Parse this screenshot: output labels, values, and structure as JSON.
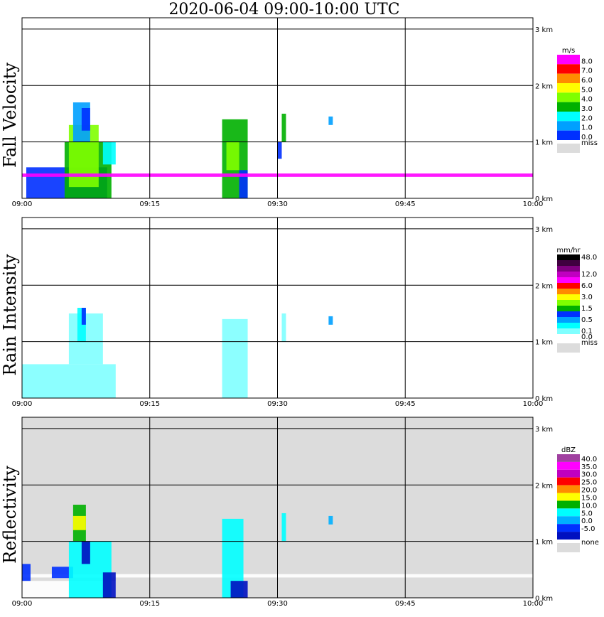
{
  "title": "2020-06-04   09:00-10:00 UTC",
  "chart_data": [
    {
      "type": "heatmap",
      "ylabel": "Fall Velocity",
      "x_ticks": [
        "09:00",
        "09:15",
        "09:30",
        "09:45",
        "10:00"
      ],
      "y_ticks": [
        "0 km",
        "1 km",
        "2 km",
        "3 km"
      ],
      "xlim": [
        "09:00",
        "10:00"
      ],
      "ylim_km": [
        0,
        3
      ],
      "background": "#ffffff",
      "colorbar": {
        "unit": "m/s",
        "bins": [
          {
            "label": "8.0",
            "color": "#ff00ff"
          },
          {
            "label": "7.0",
            "color": "#ff0000"
          },
          {
            "label": "6.0",
            "color": "#ff8c00"
          },
          {
            "label": "5.0",
            "color": "#ffff00"
          },
          {
            "label": "4.0",
            "color": "#7fff00"
          },
          {
            "label": "3.0",
            "color": "#00b000"
          },
          {
            "label": "2.0",
            "color": "#00ffff"
          },
          {
            "label": "1.0",
            "color": "#00a0ff"
          },
          {
            "label": "0.0",
            "color": "#0030ff"
          }
        ],
        "miss_label": "miss",
        "miss_color": "#dcdcdc"
      },
      "cells": [
        {
          "t": [
            0.5,
            10.0
          ],
          "z": [
            0.0,
            0.55
          ],
          "color": "#0030ff"
        },
        {
          "t": [
            5.0,
            10.5
          ],
          "z": [
            0.0,
            1.0
          ],
          "color": "#00b000"
        },
        {
          "t": [
            5.5,
            9.0
          ],
          "z": [
            0.2,
            1.3
          ],
          "color": "#7fff00"
        },
        {
          "t": [
            6.0,
            8.0
          ],
          "z": [
            1.0,
            1.7
          ],
          "color": "#00a0ff"
        },
        {
          "t": [
            7.0,
            8.0
          ],
          "z": [
            1.2,
            1.6
          ],
          "color": "#0030ff"
        },
        {
          "t": [
            9.5,
            11.0
          ],
          "z": [
            0.6,
            1.0
          ],
          "color": "#00ffff"
        },
        {
          "t": [
            23.5,
            26.5
          ],
          "z": [
            0.0,
            1.4
          ],
          "color": "#00b000"
        },
        {
          "t": [
            24.0,
            25.5
          ],
          "z": [
            0.5,
            1.0
          ],
          "color": "#7fff00"
        },
        {
          "t": [
            25.5,
            26.5
          ],
          "z": [
            0.0,
            0.5
          ],
          "color": "#0030ff"
        },
        {
          "t": [
            30.5,
            31.0
          ],
          "z": [
            1.0,
            1.5
          ],
          "color": "#00b000"
        },
        {
          "t": [
            30.0,
            30.5
          ],
          "z": [
            0.7,
            1.0
          ],
          "color": "#0030ff"
        },
        {
          "t": [
            36.0,
            36.5
          ],
          "z": [
            1.3,
            1.45
          ],
          "color": "#00a0ff"
        },
        {
          "t": [
            0.0,
            60.0
          ],
          "z": [
            0.38,
            0.44
          ],
          "color": "#ff00ff"
        }
      ]
    },
    {
      "type": "heatmap",
      "ylabel": "Rain Intensity",
      "x_ticks": [
        "09:00",
        "09:15",
        "09:30",
        "09:45",
        "10:00"
      ],
      "y_ticks": [
        "0 km",
        "1 km",
        "2 km",
        "3 km"
      ],
      "xlim": [
        "09:00",
        "10:00"
      ],
      "ylim_km": [
        0,
        3
      ],
      "background": "#ffffff",
      "colorbar": {
        "unit": "mm/hr",
        "bins": [
          {
            "label": "48.0",
            "color": "#000000"
          },
          {
            "label": "",
            "color": "#400040"
          },
          {
            "label": "",
            "color": "#800080"
          },
          {
            "label": "12.0",
            "color": "#c000c0"
          },
          {
            "label": "",
            "color": "#ff00ff"
          },
          {
            "label": "6.0",
            "color": "#ff0000"
          },
          {
            "label": "",
            "color": "#ff8c00"
          },
          {
            "label": "3.0",
            "color": "#ffff00"
          },
          {
            "label": "",
            "color": "#7fff00"
          },
          {
            "label": "1.5",
            "color": "#00b000"
          },
          {
            "label": "",
            "color": "#0030ff"
          },
          {
            "label": "0.5",
            "color": "#00a0ff"
          },
          {
            "label": "",
            "color": "#00ffff"
          },
          {
            "label": "0.1",
            "color": "#80ffff"
          },
          {
            "label": "0.0",
            "color": "#ffffff"
          }
        ],
        "miss_label": "miss",
        "miss_color": "#dcdcdc"
      },
      "cells": [
        {
          "t": [
            0.0,
            11.0
          ],
          "z": [
            0.0,
            0.6
          ],
          "color": "#80ffff"
        },
        {
          "t": [
            5.5,
            9.5
          ],
          "z": [
            0.6,
            1.5
          ],
          "color": "#80ffff"
        },
        {
          "t": [
            6.5,
            7.5
          ],
          "z": [
            1.0,
            1.6
          ],
          "color": "#00ffff"
        },
        {
          "t": [
            7.0,
            7.5
          ],
          "z": [
            1.3,
            1.6
          ],
          "color": "#0030ff"
        },
        {
          "t": [
            23.5,
            26.5
          ],
          "z": [
            0.0,
            1.4
          ],
          "color": "#80ffff"
        },
        {
          "t": [
            30.5,
            31.0
          ],
          "z": [
            1.0,
            1.5
          ],
          "color": "#80ffff"
        },
        {
          "t": [
            36.0,
            36.5
          ],
          "z": [
            1.3,
            1.45
          ],
          "color": "#00a0ff"
        }
      ]
    },
    {
      "type": "heatmap",
      "ylabel": "Reflectivity",
      "x_ticks": [
        "09:00",
        "09:15",
        "09:30",
        "09:45",
        "10:00"
      ],
      "y_ticks": [
        "0 km",
        "1 km",
        "2 km",
        "3 km"
      ],
      "xlim": [
        "09:00",
        "10:00"
      ],
      "ylim_km": [
        0,
        3
      ],
      "background": "#dcdcdc",
      "colorbar": {
        "unit": "dBZ",
        "bins": [
          {
            "label": "40.0",
            "color": "#a040a0"
          },
          {
            "label": "35.0",
            "color": "#ff00ff"
          },
          {
            "label": "30.0",
            "color": "#c000c0"
          },
          {
            "label": "25.0",
            "color": "#ff0000"
          },
          {
            "label": "20.0",
            "color": "#ff8c00"
          },
          {
            "label": "15.0",
            "color": "#ffff00"
          },
          {
            "label": "10.0",
            "color": "#00b000"
          },
          {
            "label": "5.0",
            "color": "#00ffff"
          },
          {
            "label": "0.0",
            "color": "#00b0ff"
          },
          {
            "label": "-5.0",
            "color": "#0030ff"
          },
          {
            "label": "",
            "color": "#0010c0"
          }
        ],
        "miss_label": "none",
        "miss_color": "#dcdcdc"
      },
      "cells": [
        {
          "t": [
            0.0,
            11.0
          ],
          "z": [
            0.0,
            0.3
          ],
          "color": "#ffffff"
        },
        {
          "t": [
            0.0,
            60.0
          ],
          "z": [
            0.36,
            0.42
          ],
          "color": "#ffffff"
        },
        {
          "t": [
            0.0,
            1.0
          ],
          "z": [
            0.3,
            0.6
          ],
          "color": "#0030ff"
        },
        {
          "t": [
            3.5,
            6.0
          ],
          "z": [
            0.35,
            0.55
          ],
          "color": "#0030ff"
        },
        {
          "t": [
            5.5,
            10.5
          ],
          "z": [
            0.0,
            1.0
          ],
          "color": "#00ffff"
        },
        {
          "t": [
            6.0,
            7.5
          ],
          "z": [
            1.0,
            1.65
          ],
          "color": "#00b000"
        },
        {
          "t": [
            6.0,
            7.5
          ],
          "z": [
            1.2,
            1.45
          ],
          "color": "#ffff00"
        },
        {
          "t": [
            7.0,
            8.0
          ],
          "z": [
            0.6,
            1.0
          ],
          "color": "#0010c0"
        },
        {
          "t": [
            9.5,
            11.0
          ],
          "z": [
            0.0,
            0.45
          ],
          "color": "#0010c0"
        },
        {
          "t": [
            23.5,
            26.0
          ],
          "z": [
            0.0,
            1.4
          ],
          "color": "#00ffff"
        },
        {
          "t": [
            24.5,
            26.5
          ],
          "z": [
            0.0,
            0.3
          ],
          "color": "#0010c0"
        },
        {
          "t": [
            30.5,
            31.0
          ],
          "z": [
            1.0,
            1.5
          ],
          "color": "#00ffff"
        },
        {
          "t": [
            36.0,
            36.5
          ],
          "z": [
            1.3,
            1.45
          ],
          "color": "#00b0ff"
        }
      ]
    }
  ]
}
